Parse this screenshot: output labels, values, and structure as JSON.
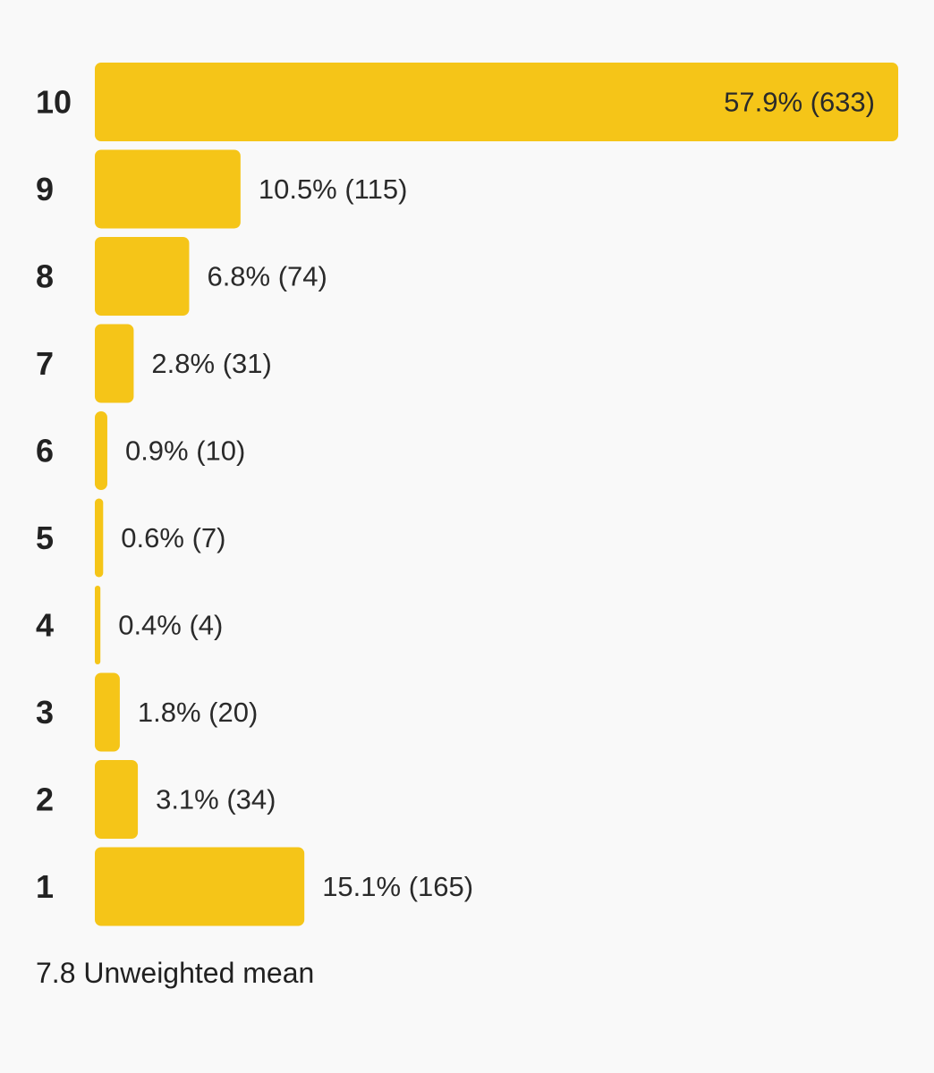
{
  "chart_data": {
    "type": "bar",
    "orientation": "horizontal",
    "categories": [
      "10",
      "9",
      "8",
      "7",
      "6",
      "5",
      "4",
      "3",
      "2",
      "1"
    ],
    "values": [
      57.9,
      10.5,
      6.8,
      2.8,
      0.9,
      0.6,
      0.4,
      1.8,
      3.1,
      15.1
    ],
    "counts": [
      633,
      115,
      74,
      31,
      10,
      7,
      4,
      20,
      34,
      165
    ],
    "labels": [
      "57.9% (633)",
      "10.5% (115)",
      "6.8% (74)",
      "2.8% (31)",
      "0.9% (10)",
      "0.6% (7)",
      "0.4% (4)",
      "1.8% (20)",
      "3.1% (34)",
      "15.1% (165)"
    ],
    "bar_color": "#f5c518",
    "grid": false,
    "title": "",
    "xlabel": "",
    "ylabel": ""
  },
  "summary": {
    "mean_text": "7.8 Unweighted mean"
  }
}
